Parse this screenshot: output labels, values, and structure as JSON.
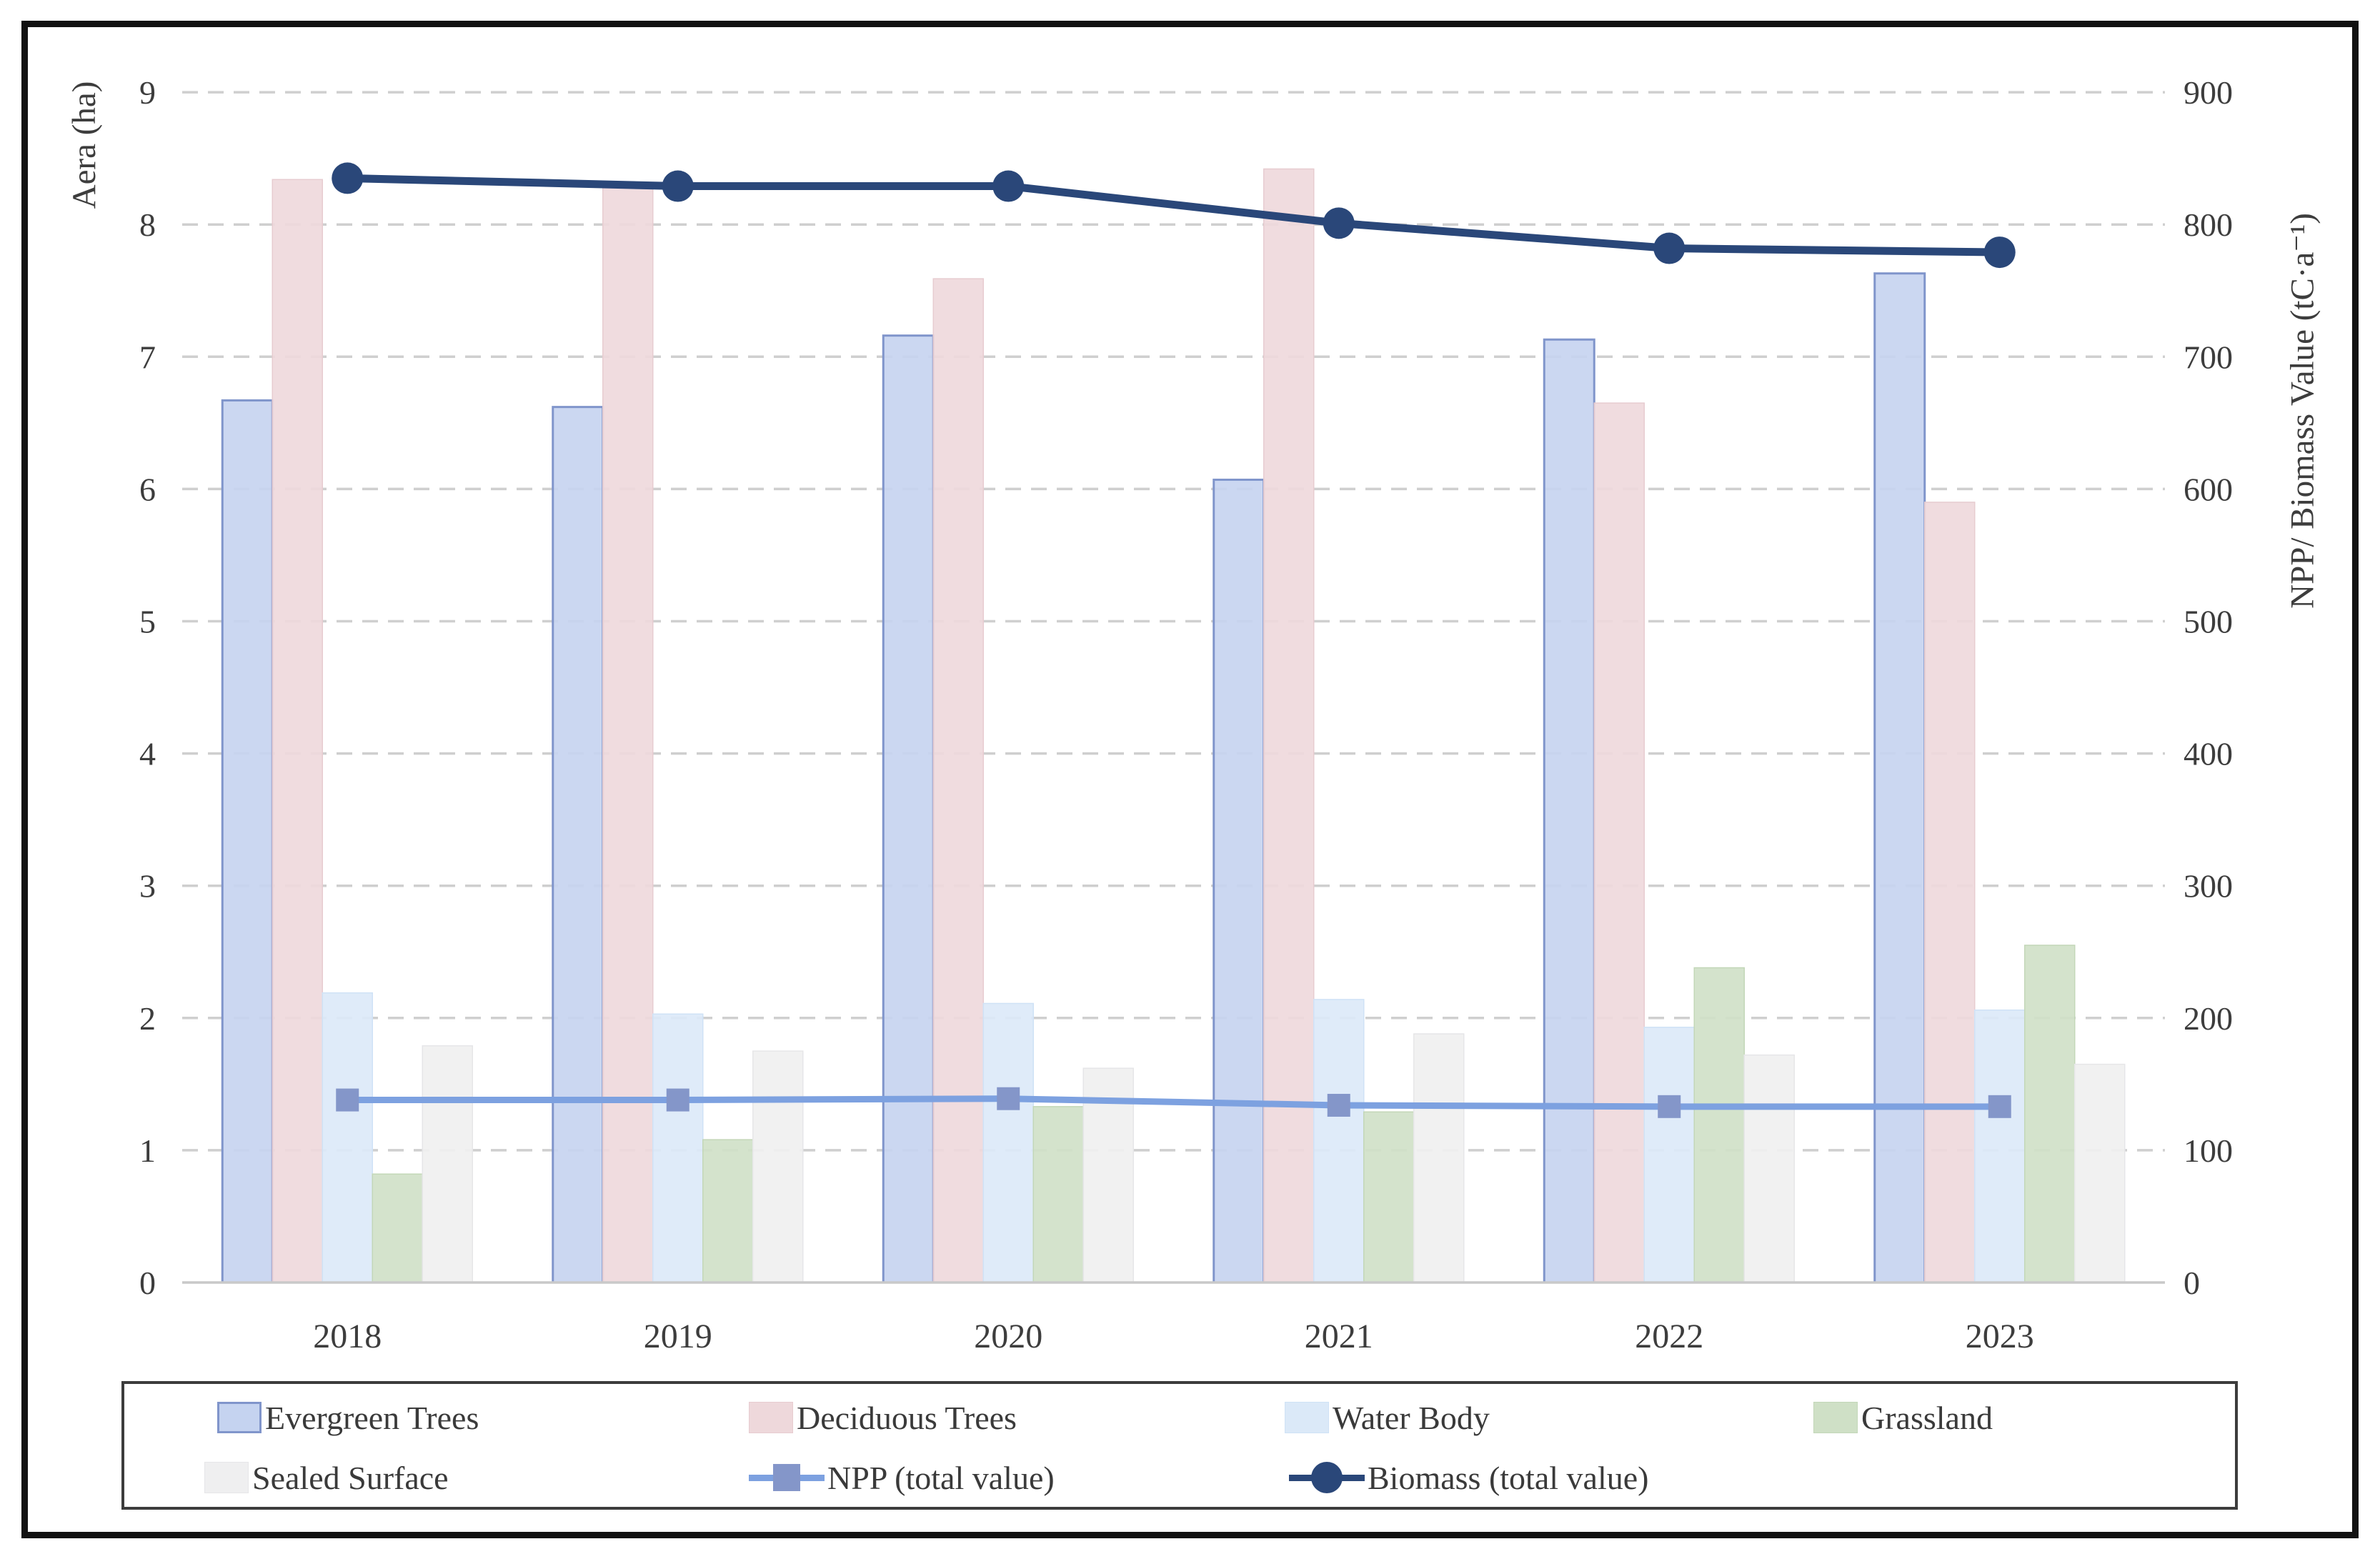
{
  "figure": {
    "background": "#ffffff",
    "border_color": "#111111",
    "gridline_color": "#cfcfcf",
    "axis_line_color": "#c9c9c9",
    "text_color": "#3d3d3d"
  },
  "chart_data": {
    "type": "bar+line combo",
    "title": "",
    "categories": [
      "2018",
      "2019",
      "2020",
      "2021",
      "2022",
      "2023"
    ],
    "left_axis": {
      "label": "Aera (ha)",
      "min": 0,
      "max": 9,
      "tick_step": 1,
      "tick_labels": [
        "0",
        "1",
        "2",
        "3",
        "4",
        "5",
        "6",
        "7",
        "8",
        "9"
      ]
    },
    "right_axis": {
      "label": "NPP/ Biomass Value (tC·a⁻¹)",
      "min": 0,
      "max": 900,
      "tick_step": 100,
      "tick_labels": [
        "0",
        "100",
        "200",
        "300",
        "400",
        "500",
        "600",
        "700",
        "800",
        "900"
      ]
    },
    "grid": "dashed horizontal",
    "legend_position": "bottom",
    "bar_series": [
      {
        "name": "Evergreen Trees",
        "axis": "left",
        "fill": "#c5d3f0",
        "border": "#8095cb",
        "values": [
          6.67,
          6.62,
          7.16,
          6.07,
          7.13,
          7.63
        ]
      },
      {
        "name": "Deciduous Trees",
        "axis": "left",
        "fill": "#eed8db",
        "border": "#e7ccd0",
        "values": [
          8.34,
          8.28,
          7.59,
          8.42,
          6.65,
          5.9
        ]
      },
      {
        "name": "Water Body",
        "axis": "left",
        "fill": "#dbe9f8",
        "border": "#cfe2f6",
        "values": [
          2.19,
          2.03,
          2.11,
          2.14,
          1.93,
          2.06
        ]
      },
      {
        "name": "Grassland",
        "axis": "left",
        "fill": "#cfe0c6",
        "border": "#c3d7b8",
        "values": [
          0.82,
          1.08,
          1.33,
          1.29,
          2.38,
          2.55
        ]
      },
      {
        "name": "Sealed Surface",
        "axis": "left",
        "fill": "#efeff0",
        "border": "#e6e6e8",
        "values": [
          1.79,
          1.75,
          1.62,
          1.88,
          1.72,
          1.65
        ]
      }
    ],
    "line_series": [
      {
        "name": "NPP (total value)",
        "axis": "right",
        "color": "#7da1e0",
        "marker": "square",
        "marker_color": "#8496c9",
        "values": [
          138,
          138,
          139,
          134,
          133,
          133
        ]
      },
      {
        "name": "Biomass (total value)",
        "axis": "right",
        "color": "#2a4779",
        "marker": "circle",
        "marker_color": "#2a4779",
        "values": [
          835,
          829,
          829,
          801,
          782,
          779
        ]
      }
    ]
  }
}
